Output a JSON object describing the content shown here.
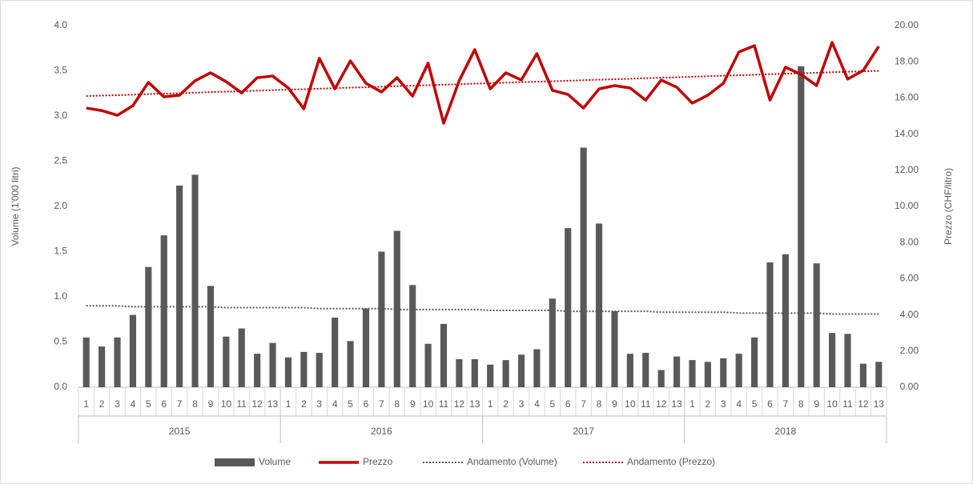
{
  "chart_data": {
    "type": "combo",
    "categories": [
      "1",
      "2",
      "3",
      "4",
      "5",
      "6",
      "7",
      "8",
      "9",
      "10",
      "11",
      "12",
      "13",
      "1",
      "2",
      "3",
      "4",
      "5",
      "6",
      "7",
      "8",
      "9",
      "10",
      "11",
      "12",
      "13",
      "1",
      "2",
      "3",
      "4",
      "5",
      "6",
      "7",
      "8",
      "9",
      "10",
      "11",
      "12",
      "13",
      "1",
      "2",
      "3",
      "4",
      "5",
      "6",
      "7",
      "8",
      "9",
      "10",
      "11",
      "12",
      "13"
    ],
    "groups": [
      "2015",
      "2016",
      "2017",
      "2018"
    ],
    "y_label": "Volume (1'000 litri)",
    "y2_label": "Prezzo (CHF/litro)",
    "ylim": [
      0,
      4
    ],
    "yticks": [
      {
        "value": 0,
        "label": "0.0"
      },
      {
        "value": 0.5,
        "label": "0.5"
      },
      {
        "value": 1,
        "label": "1.0"
      },
      {
        "value": 1.5,
        "label": "1.5"
      },
      {
        "value": 2,
        "label": "2.0"
      },
      {
        "value": 2.5,
        "label": "2.5"
      },
      {
        "value": 3,
        "label": "3.0"
      },
      {
        "value": 3.5,
        "label": "3.5"
      },
      {
        "value": 4,
        "label": "4.0"
      }
    ],
    "y2lim": [
      0,
      20
    ],
    "y2ticks": [
      {
        "value": 0,
        "label": "0.00"
      },
      {
        "value": 2,
        "label": "2.00"
      },
      {
        "value": 4,
        "label": "4.00"
      },
      {
        "value": 6,
        "label": "6.00"
      },
      {
        "value": 8,
        "label": "8.00"
      },
      {
        "value": 10,
        "label": "10.00"
      },
      {
        "value": 12,
        "label": "12.00"
      },
      {
        "value": 14,
        "label": "14.00"
      },
      {
        "value": 16,
        "label": "16.00"
      },
      {
        "value": 18,
        "label": "18.00"
      },
      {
        "value": 20,
        "label": "20.00"
      }
    ],
    "grid": false,
    "legend": "bottom",
    "series": [
      {
        "name": "Volume",
        "type": "bar",
        "color": "#595959",
        "values": [
          0.55,
          0.45,
          0.55,
          0.8,
          1.33,
          1.68,
          2.23,
          2.35,
          1.12,
          0.56,
          0.65,
          0.37,
          0.49,
          0.33,
          0.39,
          0.38,
          0.77,
          0.51,
          0.87,
          1.5,
          1.73,
          1.13,
          0.48,
          0.7,
          0.31,
          0.31,
          0.25,
          0.3,
          0.36,
          0.42,
          0.98,
          1.76,
          2.65,
          1.81,
          0.84,
          0.37,
          0.38,
          0.19,
          0.34,
          0.3,
          0.28,
          0.32,
          0.37,
          0.55,
          1.38,
          1.47,
          3.55,
          1.37,
          0.6,
          0.59,
          0.26,
          0.28
        ]
      },
      {
        "name": "Prezzo",
        "type": "line",
        "axis": "y2",
        "color": "#c00000",
        "values": [
          15.44,
          15.3,
          15.04,
          15.57,
          16.86,
          16.06,
          16.15,
          16.95,
          17.39,
          16.9,
          16.28,
          17.12,
          17.21,
          16.55,
          15.4,
          18.19,
          16.5,
          18.05,
          16.81,
          16.33,
          17.12,
          16.1,
          17.92,
          14.6,
          16.95,
          18.67,
          16.5,
          17.39,
          16.99,
          18.45,
          16.42,
          16.19,
          15.44,
          16.5,
          16.68,
          16.55,
          15.88,
          16.99,
          16.59,
          15.71,
          16.15,
          16.81,
          18.54,
          18.89,
          15.88,
          17.7,
          17.3,
          16.68,
          19.07,
          17.04,
          17.52,
          18.85
        ]
      },
      {
        "name": "Andamento (Volume)",
        "type": "line",
        "style": "dotted",
        "color": "#595959",
        "values": [
          0.9,
          0.9,
          0.9,
          0.89,
          0.89,
          0.89,
          0.89,
          0.89,
          0.89,
          0.88,
          0.88,
          0.88,
          0.88,
          0.88,
          0.88,
          0.87,
          0.87,
          0.87,
          0.87,
          0.87,
          0.86,
          0.86,
          0.86,
          0.86,
          0.86,
          0.86,
          0.85,
          0.85,
          0.85,
          0.85,
          0.85,
          0.84,
          0.84,
          0.84,
          0.84,
          0.84,
          0.84,
          0.83,
          0.83,
          0.83,
          0.83,
          0.83,
          0.82,
          0.82,
          0.82,
          0.82,
          0.82,
          0.82,
          0.81,
          0.81,
          0.81,
          0.81
        ]
      },
      {
        "name": "Andamento (Prezzo)",
        "type": "line",
        "style": "dotted",
        "axis": "y2",
        "color": "#c00000",
        "values": [
          16.1,
          16.13,
          16.15,
          16.18,
          16.21,
          16.24,
          16.26,
          16.29,
          16.32,
          16.35,
          16.37,
          16.4,
          16.43,
          16.46,
          16.48,
          16.51,
          16.54,
          16.57,
          16.59,
          16.62,
          16.65,
          16.68,
          16.7,
          16.73,
          16.76,
          16.79,
          16.81,
          16.84,
          16.87,
          16.9,
          16.92,
          16.95,
          16.98,
          17.01,
          17.03,
          17.06,
          17.09,
          17.12,
          17.14,
          17.17,
          17.2,
          17.23,
          17.25,
          17.28,
          17.31,
          17.34,
          17.36,
          17.39,
          17.42,
          17.45,
          17.47,
          17.5
        ]
      }
    ]
  }
}
